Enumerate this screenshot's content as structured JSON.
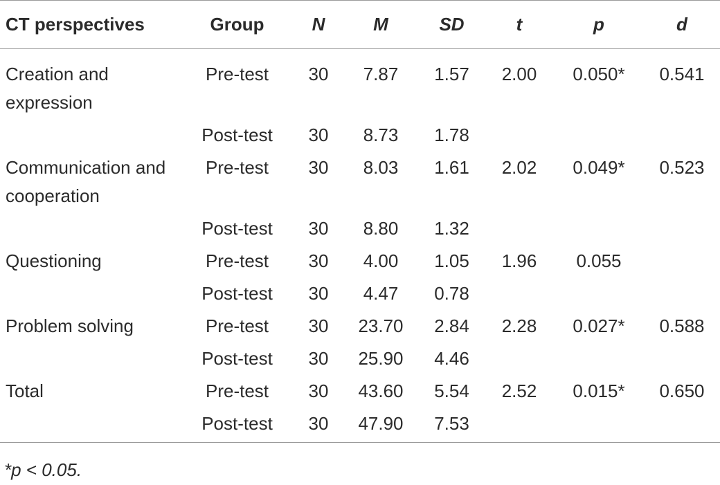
{
  "table": {
    "headers": [
      "CT perspectives",
      "Group",
      "N",
      "M",
      "SD",
      "t",
      "p",
      "d"
    ],
    "rows": [
      {
        "perspective": "Creation and expression",
        "group": "Pre-test",
        "n": "30",
        "m": "7.87",
        "sd": "1.57",
        "t": "2.00",
        "p": "0.050*",
        "d": "0.541"
      },
      {
        "perspective": "",
        "group": "Post-test",
        "n": "30",
        "m": "8.73",
        "sd": "1.78",
        "t": "",
        "p": "",
        "d": ""
      },
      {
        "perspective": "Communication and cooperation",
        "group": "Pre-test",
        "n": "30",
        "m": "8.03",
        "sd": "1.61",
        "t": "2.02",
        "p": "0.049*",
        "d": "0.523"
      },
      {
        "perspective": "",
        "group": "Post-test",
        "n": "30",
        "m": "8.80",
        "sd": "1.32",
        "t": "",
        "p": "",
        "d": ""
      },
      {
        "perspective": "Questioning",
        "group": "Pre-test",
        "n": "30",
        "m": "4.00",
        "sd": "1.05",
        "t": "1.96",
        "p": "0.055",
        "d": ""
      },
      {
        "perspective": "",
        "group": "Post-test",
        "n": "30",
        "m": "4.47",
        "sd": "0.78",
        "t": "",
        "p": "",
        "d": ""
      },
      {
        "perspective": "Problem solving",
        "group": "Pre-test",
        "n": "30",
        "m": "23.70",
        "sd": "2.84",
        "t": "2.28",
        "p": "0.027*",
        "d": "0.588"
      },
      {
        "perspective": "",
        "group": "Post-test",
        "n": "30",
        "m": "25.90",
        "sd": "4.46",
        "t": "",
        "p": "",
        "d": ""
      },
      {
        "perspective": "Total",
        "group": "Pre-test",
        "n": "30",
        "m": "43.60",
        "sd": "5.54",
        "t": "2.52",
        "p": "0.015*",
        "d": "0.650"
      },
      {
        "perspective": "",
        "group": "Post-test",
        "n": "30",
        "m": "47.90",
        "sd": "7.53",
        "t": "",
        "p": "",
        "d": ""
      }
    ]
  },
  "footnote": "*p < 0.05."
}
